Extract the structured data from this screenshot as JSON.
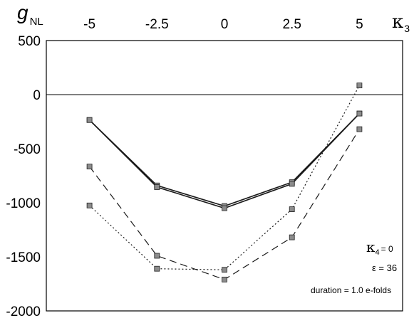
{
  "chart_data": {
    "type": "line",
    "ylabel_main": "g",
    "ylabel_sub": "NL",
    "xlabel_main": "κ",
    "xlabel_sub": "3",
    "x": [
      -5,
      -2.5,
      0,
      2.5,
      5
    ],
    "x_tick_labels": [
      "-5",
      "-2.5",
      "0",
      "2.5",
      "5"
    ],
    "xlim": [
      -6.6,
      6.6
    ],
    "y_ticks": [
      500,
      0,
      -500,
      -1000,
      -1500,
      -2000
    ],
    "y_tick_labels": [
      "500",
      "0",
      "-500",
      "-1000",
      "-1500",
      "-2000"
    ],
    "ylim": [
      -2000,
      500
    ],
    "zero_line": true,
    "series": [
      {
        "style": "solid",
        "values": [
          -235,
          -840,
          -1030,
          -810,
          -175
        ]
      },
      {
        "style": "solid",
        "values": [
          -235,
          -855,
          -1050,
          -825,
          -175
        ]
      },
      {
        "style": "dashed",
        "values": [
          -665,
          -1490,
          -1710,
          -1320,
          -320
        ]
      },
      {
        "style": "dotted",
        "values": [
          -1025,
          -1610,
          -1620,
          -1060,
          85
        ]
      }
    ],
    "annotations": {
      "kappa4_main": "κ",
      "kappa4_sub": "4",
      "kappa4_value": "= 0",
      "epsilon": "ε = 36",
      "duration": "duration = 1.0 e-folds"
    }
  }
}
